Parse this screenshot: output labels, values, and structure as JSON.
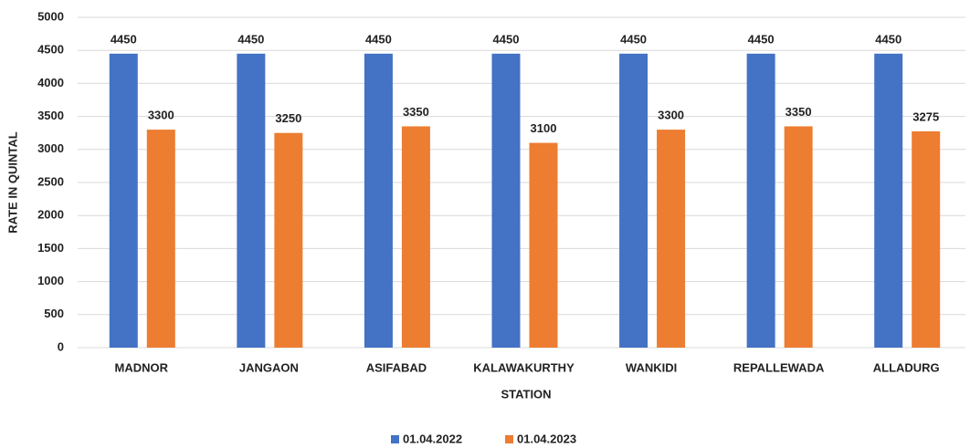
{
  "chart_data": {
    "type": "bar",
    "categories": [
      "MADNOR",
      "JANGAON",
      "ASIFABAD",
      "KALAWAKURTHY",
      "WANKIDI",
      "REPALLEWADA",
      "ALLADURG"
    ],
    "series": [
      {
        "name": "01.04.2022",
        "color": "#4472c4",
        "values": [
          4450,
          4450,
          4450,
          4450,
          4450,
          4450,
          4450
        ]
      },
      {
        "name": "01.04.2023",
        "color": "#ed7d31",
        "values": [
          3300,
          3250,
          3350,
          3100,
          3300,
          3350,
          3275
        ]
      }
    ],
    "xlabel": "STATION",
    "ylabel": "RATE IN QUINTAL",
    "ylim": [
      0,
      5000
    ],
    "yticks": [
      0,
      500,
      1000,
      1500,
      2000,
      2500,
      3000,
      3500,
      4000,
      4500,
      5000
    ],
    "grid": true,
    "legend": "bottom"
  }
}
